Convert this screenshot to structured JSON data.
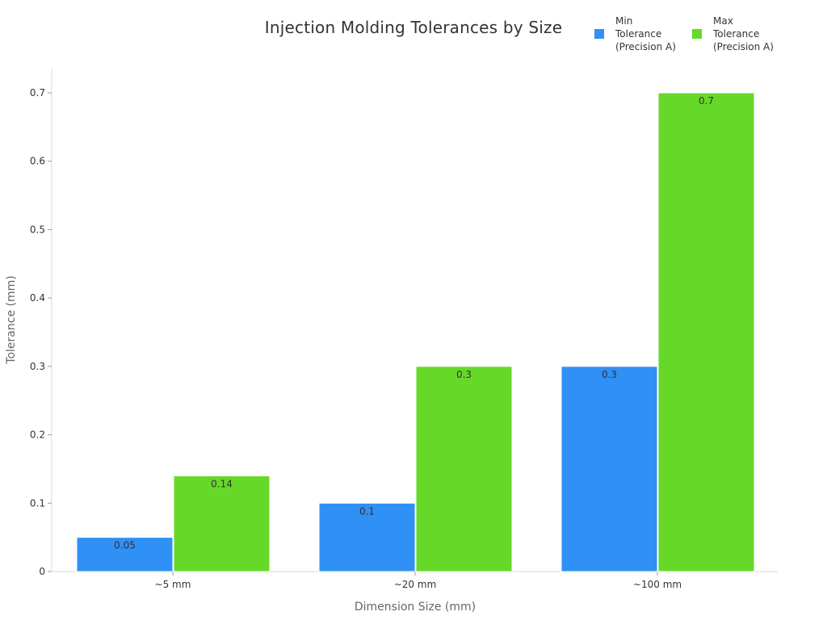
{
  "chart_data": {
    "type": "bar",
    "title": "Injection Molding Tolerances by Size",
    "xlabel": "Dimension Size (mm)",
    "ylabel": "Tolerance (mm)",
    "categories": [
      "~5 mm",
      "~20 mm",
      "~100 mm"
    ],
    "ylim": [
      0,
      0.7
    ],
    "yticks": [
      "0",
      "0.1",
      "0.2",
      "0.3",
      "0.4",
      "0.5",
      "0.6",
      "0.7"
    ],
    "ytick_values": [
      0,
      0.1,
      0.2,
      0.3,
      0.4,
      0.5,
      0.6,
      0.7
    ],
    "grid": false,
    "legend_position": "top-right",
    "series": [
      {
        "name": "Min Tolerance (Precision A)",
        "legend_lines": "Min\nTolerance\n(Precision A)",
        "color": "#2f90f5",
        "values": [
          0.05,
          0.1,
          0.3
        ],
        "labels": [
          "0.05",
          "0.1",
          "0.3"
        ]
      },
      {
        "name": "Max Tolerance (Precision A)",
        "legend_lines": "Max\nTolerance\n(Precision A)",
        "color": "#66d928",
        "values": [
          0.14,
          0.3,
          0.7
        ],
        "labels": [
          "0.14",
          "0.3",
          "0.7"
        ]
      }
    ]
  }
}
